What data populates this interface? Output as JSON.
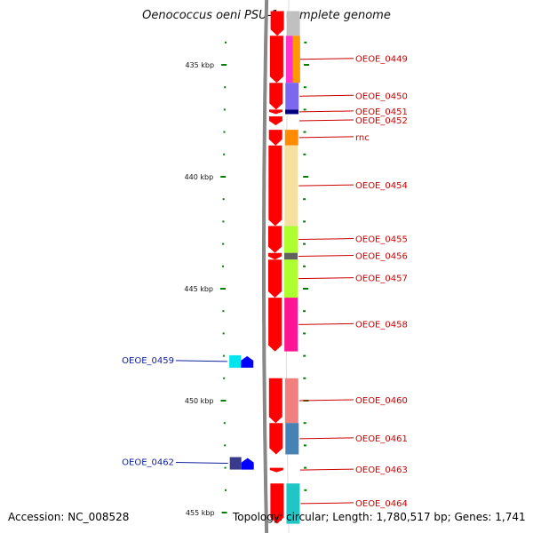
{
  "title": "Oenococcus oeni PSU-1, complete genome",
  "footer": {
    "accession": "Accession: NC_008528",
    "topology": "Topology: circular; Length: 1,780,517 bp; Genes: 1,741"
  },
  "axis_labels": [
    {
      "text": "435 kbp",
      "kbp": 435
    },
    {
      "text": "440 kbp",
      "kbp": 440
    },
    {
      "text": "445 kbp",
      "kbp": 445
    },
    {
      "text": "450 kbp",
      "kbp": 450
    },
    {
      "text": "455 kbp",
      "kbp": 455
    }
  ],
  "colors": {
    "backbone": "#888888",
    "forward_arrow": "#ff0000",
    "reverse_arrow": "#0000ff",
    "tick": "#008000",
    "label_forward": "#cc0000",
    "label_reverse": "#1020a0"
  },
  "forward_genes": [
    {
      "name": "",
      "start_kbp": 432.6,
      "end_kbp": 433.7,
      "color": "#c0c0c0"
    },
    {
      "name": "OEOE_0449",
      "start_kbp": 433.7,
      "end_kbp": 435.8,
      "color": "#ff9900",
      "color2": "#ff33cc"
    },
    {
      "name": "OEOE_0450",
      "start_kbp": 435.8,
      "end_kbp": 437.0,
      "color": "#7b68ee"
    },
    {
      "name": "OEOE_0451",
      "start_kbp": 437.0,
      "end_kbp": 437.2,
      "color": "#000080"
    },
    {
      "name": "OEOE_0452",
      "start_kbp": 437.3,
      "end_kbp": 437.7,
      "color": "#ffffff"
    },
    {
      "name": "rnc",
      "start_kbp": 437.9,
      "end_kbp": 438.6,
      "color": "#ff8c00"
    },
    {
      "name": "OEOE_0454",
      "start_kbp": 438.6,
      "end_kbp": 442.2,
      "color": "#f5e0a0"
    },
    {
      "name": "OEOE_0455",
      "start_kbp": 442.2,
      "end_kbp": 443.4,
      "color": "#adff2f"
    },
    {
      "name": "OEOE_0456",
      "start_kbp": 443.4,
      "end_kbp": 443.7,
      "color": "#606060"
    },
    {
      "name": "OEOE_0457",
      "start_kbp": 443.7,
      "end_kbp": 445.4,
      "color": "#adff2f"
    },
    {
      "name": "OEOE_0458",
      "start_kbp": 445.4,
      "end_kbp": 447.8,
      "color": "#ff1493"
    },
    {
      "name": "OEOE_0460",
      "start_kbp": 449.0,
      "end_kbp": 451.0,
      "color": "#f08080"
    },
    {
      "name": "OEOE_0461",
      "start_kbp": 451.0,
      "end_kbp": 452.4,
      "color": "#4682b4"
    },
    {
      "name": "OEOE_0463",
      "start_kbp": 453.0,
      "end_kbp": 453.2,
      "color": "#ffffff"
    },
    {
      "name": "OEOE_0464",
      "start_kbp": 453.7,
      "end_kbp": 455.5,
      "color": "#20c5c5"
    }
  ],
  "reverse_genes": [
    {
      "name": "OEOE_0459",
      "start_kbp": 448.0,
      "end_kbp": 448.5,
      "color": "#00e5ee"
    },
    {
      "name": "OEOE_0462",
      "start_kbp": 452.5,
      "end_kbp": 453.1,
      "color": "#3a3a8c"
    }
  ]
}
